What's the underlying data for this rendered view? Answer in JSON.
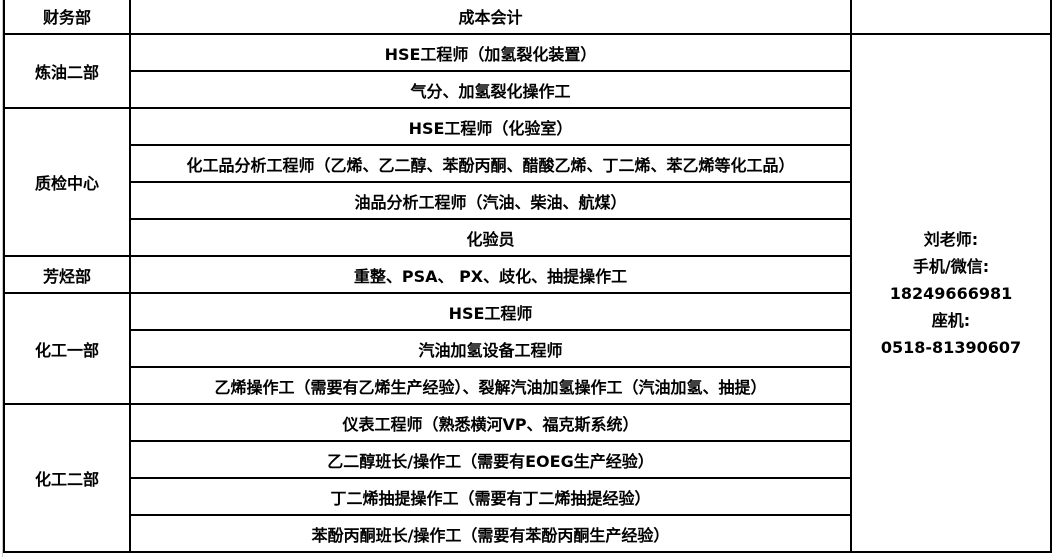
{
  "groups": [
    {
      "dept": "财务部",
      "positions": [
        "成本会计"
      ]
    },
    {
      "dept": "炼油二部",
      "positions": [
        "HSE工程师（加氢裂化装置）",
        "气分、加氢裂化操作工"
      ]
    },
    {
      "dept": "质检中心",
      "positions": [
        "HSE工程师（化验室）",
        "化工品分析工程师（乙烯、乙二醇、苯酚丙酮、醋酸乙烯、丁二烯、苯乙烯等化工品）",
        "油品分析工程师（汽油、柴油、航煤）",
        "化验员"
      ]
    },
    {
      "dept": "芳烃部",
      "positions": [
        "重整、PSA、 PX、歧化、抽提操作工"
      ]
    },
    {
      "dept": "化工一部",
      "positions": [
        "HSE工程师",
        "汽油加氢设备工程师",
        "乙烯操作工（需要有乙烯生产经验）、裂解汽油加氢操作工（汽油加氢、抽提）"
      ]
    },
    {
      "dept": "化工二部",
      "positions": [
        "仪表工程师（熟悉横河VP、福克斯系统）",
        "乙二醇班长/操作工（需要有EOEG生产经验）",
        "丁二烯抽提操作工（需要有丁二烯抽提经验）",
        "苯酚丙酮班长/操作工（需要有苯酚丙酮生产经验）"
      ]
    }
  ],
  "contact": {
    "name": "刘老师:",
    "mobile_label": "手机/微信:",
    "mobile": "18249666981",
    "landline_label": "座机:",
    "landline": "0518-81390607"
  }
}
